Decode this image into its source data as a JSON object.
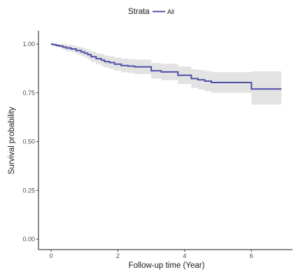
{
  "chart_data": {
    "type": "line",
    "subtype": "kaplan-meier-survival",
    "title": "",
    "xlabel": "Follow-up time (Year)",
    "ylabel": "Survival probability",
    "xlim": [
      0,
      7
    ],
    "ylim": [
      0,
      1
    ],
    "x_ticks": [
      0,
      2,
      4,
      6
    ],
    "x_tick_labels": [
      "0",
      "2",
      "4",
      "6"
    ],
    "y_ticks": [
      0,
      0.25,
      0.5,
      0.75,
      1.0
    ],
    "y_tick_labels": [
      "0.00",
      "0.25",
      "0.50",
      "0.75",
      "1.00"
    ],
    "grid": false,
    "legend": {
      "title": "Strata",
      "position": "top",
      "entries": [
        "All"
      ]
    },
    "series": [
      {
        "name": "All",
        "color": "#4f4fa8",
        "band_color": "#d9d9d9",
        "step": true,
        "x": [
          0,
          0.05,
          0.15,
          0.25,
          0.35,
          0.45,
          0.6,
          0.75,
          0.9,
          1.0,
          1.1,
          1.2,
          1.35,
          1.5,
          1.6,
          1.75,
          1.9,
          2.1,
          2.3,
          2.5,
          3.0,
          3.3,
          3.8,
          4.2,
          4.4,
          4.6,
          4.8,
          6.0,
          6.9
        ],
        "y": [
          1.0,
          0.997,
          0.993,
          0.99,
          0.985,
          0.98,
          0.975,
          0.967,
          0.96,
          0.953,
          0.945,
          0.935,
          0.925,
          0.918,
          0.91,
          0.905,
          0.897,
          0.89,
          0.887,
          0.883,
          0.863,
          0.857,
          0.84,
          0.823,
          0.817,
          0.81,
          0.803,
          0.77,
          0.77
        ],
        "lower": [
          1.0,
          0.99,
          0.983,
          0.978,
          0.971,
          0.964,
          0.957,
          0.947,
          0.938,
          0.93,
          0.92,
          0.908,
          0.897,
          0.888,
          0.879,
          0.872,
          0.863,
          0.855,
          0.851,
          0.846,
          0.823,
          0.815,
          0.795,
          0.775,
          0.767,
          0.758,
          0.75,
          0.69,
          0.69
        ],
        "upper": [
          1.0,
          1.0,
          1.0,
          1.0,
          0.999,
          0.996,
          0.993,
          0.987,
          0.982,
          0.976,
          0.97,
          0.962,
          0.953,
          0.948,
          0.941,
          0.938,
          0.931,
          0.925,
          0.923,
          0.92,
          0.903,
          0.899,
          0.885,
          0.871,
          0.867,
          0.862,
          0.856,
          0.86,
          0.86
        ]
      }
    ]
  }
}
